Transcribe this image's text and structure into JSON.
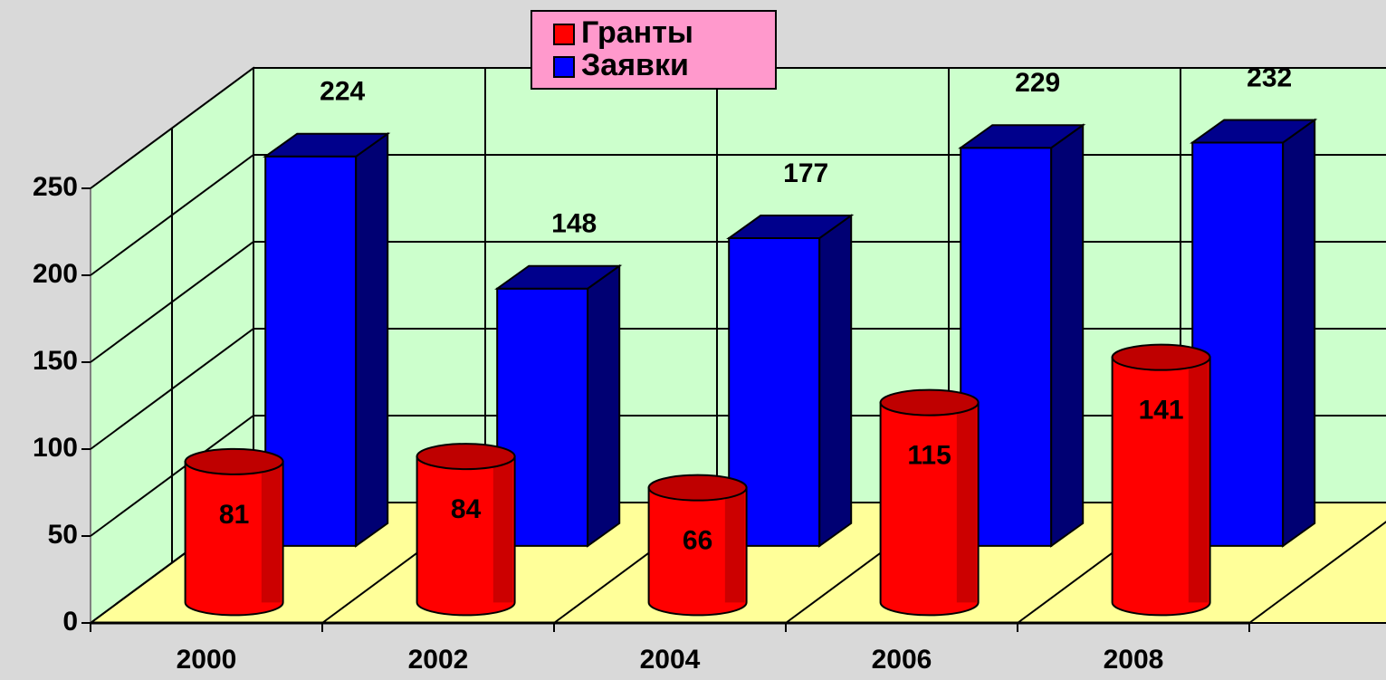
{
  "chart_data": {
    "type": "bar3d",
    "categories": [
      "2000",
      "2002",
      "2004",
      "2006",
      "2008"
    ],
    "series": [
      {
        "name": "Гранты",
        "color": "#ff0000",
        "values": [
          81,
          84,
          66,
          115,
          141
        ]
      },
      {
        "name": "Заявки",
        "color": "#0000ff",
        "values": [
          224,
          148,
          177,
          229,
          232
        ]
      }
    ],
    "ylim": [
      0,
      250
    ],
    "yticks": [
      0,
      50,
      100,
      150,
      200,
      250
    ],
    "grid": true,
    "legend": "top"
  }
}
